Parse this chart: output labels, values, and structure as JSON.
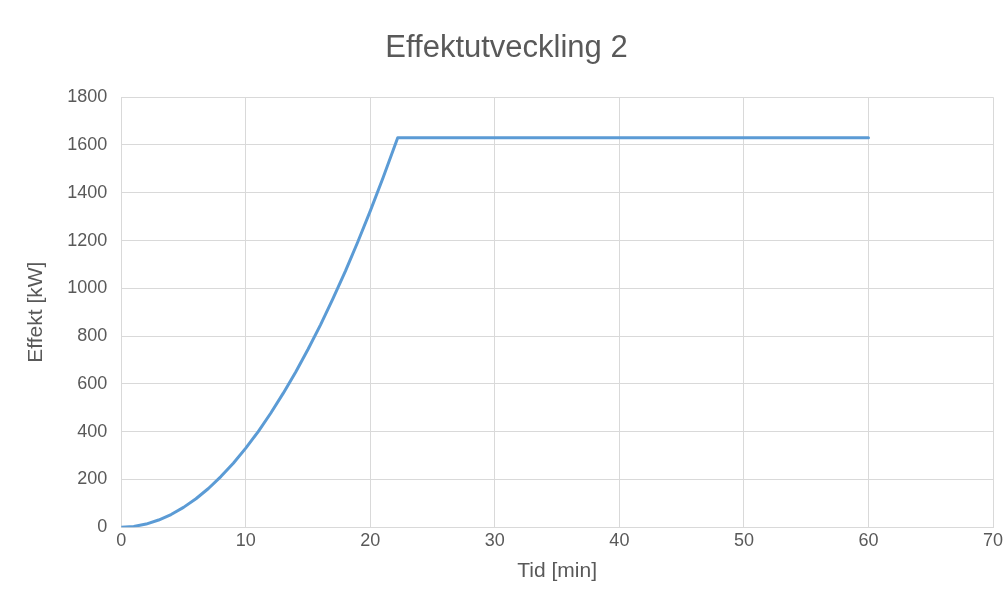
{
  "chart_data": {
    "type": "line",
    "title": "Effektutveckling 2",
    "xlabel": "Tid [min]",
    "ylabel": "Effekt [kW]",
    "x": [
      0,
      1,
      2,
      3,
      4,
      5,
      6,
      7,
      8,
      9,
      10,
      11,
      12,
      13,
      14,
      15,
      16,
      17,
      18,
      19,
      20,
      21,
      22.2,
      30,
      40,
      50,
      60
    ],
    "series": [
      {
        "color": "#5b9bd5",
        "values": [
          0,
          3,
          13,
          30,
          53,
          83,
          119,
          162,
          212,
          268,
          331,
          400,
          477,
          560,
          649,
          745,
          847,
          957,
          1072,
          1195,
          1324,
          1460,
          1630,
          1630,
          1630,
          1630,
          1630
        ]
      }
    ],
    "xlim": [
      0,
      70
    ],
    "xticks": [
      0,
      10,
      20,
      30,
      40,
      50,
      60,
      70
    ],
    "ylim": [
      0,
      1800
    ],
    "yticks": [
      0,
      200,
      400,
      600,
      800,
      1000,
      1200,
      1400,
      1600,
      1800
    ],
    "grid": true,
    "marker": "none",
    "line_style": "solid"
  }
}
